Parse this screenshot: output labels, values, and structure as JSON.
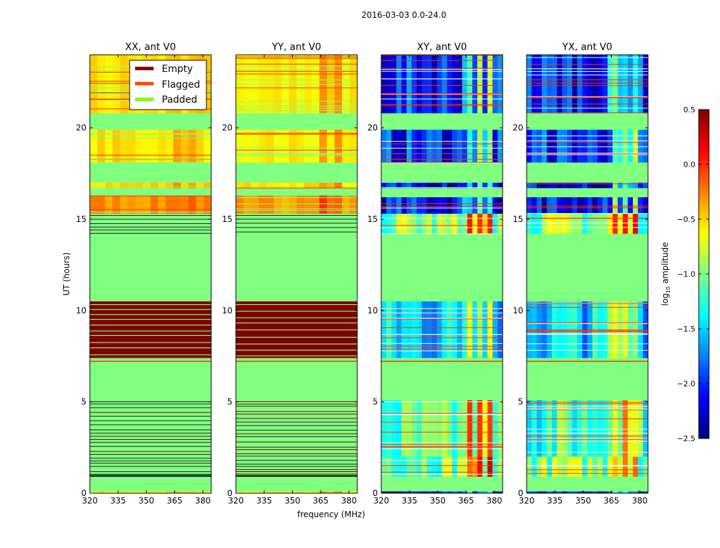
{
  "chart_data": {
    "type": "heatmap",
    "title": "2016-03-03 0.0-24.0",
    "xlabel": "frequency (MHz)",
    "ylabel": "UT (hours)",
    "xlim": [
      320,
      384.4
    ],
    "ylim": [
      0,
      24
    ],
    "xticks": [
      320,
      335,
      350,
      365,
      380
    ],
    "yticks": [
      0,
      5,
      10,
      15,
      20
    ],
    "colorbar": {
      "label": "log10 amplitude",
      "label_main": "log",
      "label_sub": "10",
      "label_rest": " amplitude",
      "range": [
        -2.5,
        0.5
      ],
      "ticks": [
        0.5,
        0.0,
        -0.5,
        -1.0,
        -1.5,
        -2.0,
        -2.5
      ],
      "tick_labels": [
        "0.5",
        "0.0",
        "−0.5",
        "−1.0",
        "−1.5",
        "−2.0",
        "−2.5"
      ],
      "colormap": "jet"
    },
    "legend": {
      "placement": "top-right of first panel",
      "entries": [
        {
          "label": "Empty",
          "color": "#800000"
        },
        {
          "label": "Flagged",
          "color": "#ff4500"
        },
        {
          "label": "Padded",
          "color": "#7cfc00"
        }
      ]
    },
    "category_colors": {
      "empty": "#800000",
      "flagged": "#ff3300",
      "padded": "#80ff80",
      "line": "#202020"
    },
    "panels": [
      {
        "title": "XX, ant V0",
        "kind": "auto",
        "bands": [
          [
            0,
            0.1,
            -0.6
          ],
          [
            0.1,
            0.9,
            "padded"
          ],
          [
            0.9,
            1.0,
            "line"
          ],
          [
            1.0,
            5.1,
            "padded-lines"
          ],
          [
            5.8,
            5.85,
            "flagged"
          ],
          [
            5.1,
            7.2,
            "padded"
          ],
          [
            7.2,
            7.25,
            "flagged"
          ],
          [
            7.4,
            10.5,
            "empty-mixed"
          ],
          [
            10.5,
            14.2,
            "padded"
          ],
          [
            14.2,
            15.3,
            "padded-lines"
          ],
          [
            15.3,
            16.3,
            -0.3
          ],
          [
            16.3,
            16.7,
            "padded"
          ],
          [
            16.7,
            17.0,
            -0.5
          ],
          [
            17.0,
            18.1,
            "padded"
          ],
          [
            18.1,
            19.9,
            -0.55
          ],
          [
            19.9,
            20.8,
            "padded"
          ],
          [
            20.8,
            24,
            -0.55
          ]
        ],
        "hot_columns": [
          [
            360,
            384,
            0.15
          ]
        ]
      },
      {
        "title": "YY, ant V0",
        "kind": "auto",
        "bands": [
          [
            0,
            0.1,
            -0.6
          ],
          [
            0.1,
            0.9,
            "padded"
          ],
          [
            0.9,
            1.0,
            "line"
          ],
          [
            1.0,
            5.1,
            "padded-lines"
          ],
          [
            5.8,
            5.85,
            "flagged"
          ],
          [
            5.1,
            7.2,
            "padded"
          ],
          [
            7.2,
            7.25,
            "flagged"
          ],
          [
            7.4,
            10.5,
            "empty-mixed"
          ],
          [
            10.5,
            14.2,
            "padded"
          ],
          [
            14.2,
            15.3,
            "padded-lines"
          ],
          [
            15.3,
            16.3,
            -0.35
          ],
          [
            16.3,
            16.7,
            "padded"
          ],
          [
            16.7,
            17.0,
            -0.55
          ],
          [
            17.0,
            18.1,
            "padded"
          ],
          [
            18.1,
            19.9,
            -0.6
          ],
          [
            19.9,
            20.8,
            "padded"
          ],
          [
            20.8,
            24,
            -0.6
          ]
        ],
        "hot_columns": [
          [
            361,
            380,
            0.25
          ]
        ]
      },
      {
        "title": "XY, ant V0",
        "kind": "cross",
        "bands": [
          [
            0,
            0.1,
            -2.2
          ],
          [
            0.1,
            0.9,
            "padded"
          ],
          [
            0.9,
            2.0,
            -1.0
          ],
          [
            2.0,
            5.1,
            -1.2
          ],
          [
            5.1,
            7.2,
            "padded"
          ],
          [
            7.2,
            7.25,
            "flagged"
          ],
          [
            7.4,
            10.5,
            -1.5
          ],
          [
            10.5,
            14.2,
            "padded"
          ],
          [
            14.2,
            15.3,
            -1.0
          ],
          [
            15.3,
            16.2,
            -2.1
          ],
          [
            16.3,
            16.7,
            "padded"
          ],
          [
            16.7,
            17.0,
            -2.2
          ],
          [
            17.0,
            18.1,
            "padded"
          ],
          [
            18.1,
            19.9,
            -2.0
          ],
          [
            19.9,
            20.8,
            "padded"
          ],
          [
            20.8,
            24,
            -2.0
          ]
        ],
        "hot_columns": [
          [
            362,
            380,
            0.9
          ]
        ]
      },
      {
        "title": "YX, ant V0",
        "kind": "cross",
        "bands": [
          [
            0,
            0.1,
            -2.2
          ],
          [
            0.1,
            0.9,
            "padded"
          ],
          [
            0.9,
            2.0,
            -1.0
          ],
          [
            2.0,
            5.1,
            -1.2
          ],
          [
            5.1,
            7.2,
            "padded"
          ],
          [
            7.2,
            7.25,
            "flagged"
          ],
          [
            7.4,
            10.5,
            -1.5
          ],
          [
            10.5,
            14.2,
            "padded"
          ],
          [
            14.2,
            15.3,
            -1.0
          ],
          [
            15.3,
            16.2,
            -2.1
          ],
          [
            16.3,
            16.7,
            "padded"
          ],
          [
            16.7,
            17.0,
            -2.2
          ],
          [
            17.0,
            18.1,
            "padded"
          ],
          [
            18.1,
            19.9,
            -2.0
          ],
          [
            19.9,
            20.8,
            "padded"
          ],
          [
            20.8,
            24,
            -2.0
          ]
        ],
        "hot_columns": [
          [
            362,
            380,
            0.9
          ]
        ]
      }
    ]
  }
}
